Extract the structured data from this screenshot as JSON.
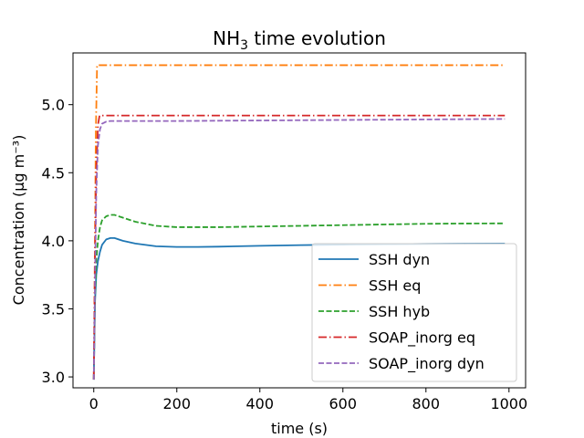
{
  "chart_data": {
    "type": "line",
    "title": "NH3 time evolution",
    "title_main": "NH",
    "title_sub": "3",
    "title_rest": " time evolution",
    "xlabel": "time (s)",
    "ylabel": "Concentration (μg m⁻³)",
    "xlim": [
      -50,
      1040
    ],
    "ylim": [
      2.92,
      5.38
    ],
    "xticks": [
      0,
      200,
      400,
      600,
      800,
      1000
    ],
    "xtick_labels": [
      "0",
      "200",
      "400",
      "600",
      "800",
      "1000"
    ],
    "yticks": [
      3.0,
      3.5,
      4.0,
      4.5,
      5.0
    ],
    "ytick_labels": [
      "3.0",
      "3.5",
      "4.0",
      "4.5",
      "5.0"
    ],
    "grid": false,
    "legend_position": "bottom-right",
    "series": [
      {
        "name": "SSH dyn",
        "color": "#1f77b4",
        "dash": "solid",
        "x": [
          0,
          3,
          6,
          10,
          15,
          20,
          30,
          40,
          50,
          70,
          100,
          150,
          200,
          250,
          300,
          400,
          500,
          600,
          700,
          800,
          900,
          990
        ],
        "y": [
          2.98,
          3.55,
          3.75,
          3.85,
          3.92,
          3.97,
          4.01,
          4.02,
          4.02,
          4.0,
          3.98,
          3.96,
          3.955,
          3.955,
          3.957,
          3.963,
          3.968,
          3.972,
          3.975,
          3.977,
          3.979,
          3.98
        ]
      },
      {
        "name": "SSH eq",
        "color": "#ff7f0e",
        "dash": "dashdot",
        "x": [
          0,
          5,
          8,
          990
        ],
        "y": [
          2.98,
          4.8,
          5.29,
          5.29
        ]
      },
      {
        "name": "SSH hyb",
        "color": "#2ca02c",
        "dash": "dashed",
        "x": [
          0,
          3,
          6,
          10,
          15,
          20,
          30,
          40,
          50,
          70,
          100,
          150,
          200,
          250,
          300,
          400,
          500,
          600,
          700,
          800,
          900,
          990
        ],
        "y": [
          2.98,
          3.6,
          3.85,
          4.0,
          4.1,
          4.15,
          4.18,
          4.19,
          4.19,
          4.17,
          4.14,
          4.11,
          4.1,
          4.1,
          4.1,
          4.105,
          4.11,
          4.115,
          4.12,
          4.125,
          4.127,
          4.128
        ]
      },
      {
        "name": "SOAP_inorg eq",
        "color": "#d62728",
        "dash": "dashdot",
        "x": [
          0,
          3,
          6,
          10,
          14,
          990
        ],
        "y": [
          2.98,
          3.9,
          4.5,
          4.85,
          4.92,
          4.92
        ]
      },
      {
        "name": "SOAP_inorg dyn",
        "color": "#9467bd",
        "dash": "dashed",
        "x": [
          0,
          3,
          6,
          10,
          15,
          20,
          30,
          40,
          60,
          100,
          200,
          990
        ],
        "y": [
          2.98,
          3.7,
          4.35,
          4.7,
          4.82,
          4.86,
          4.875,
          4.88,
          4.88,
          4.88,
          4.88,
          4.895
        ]
      }
    ]
  }
}
